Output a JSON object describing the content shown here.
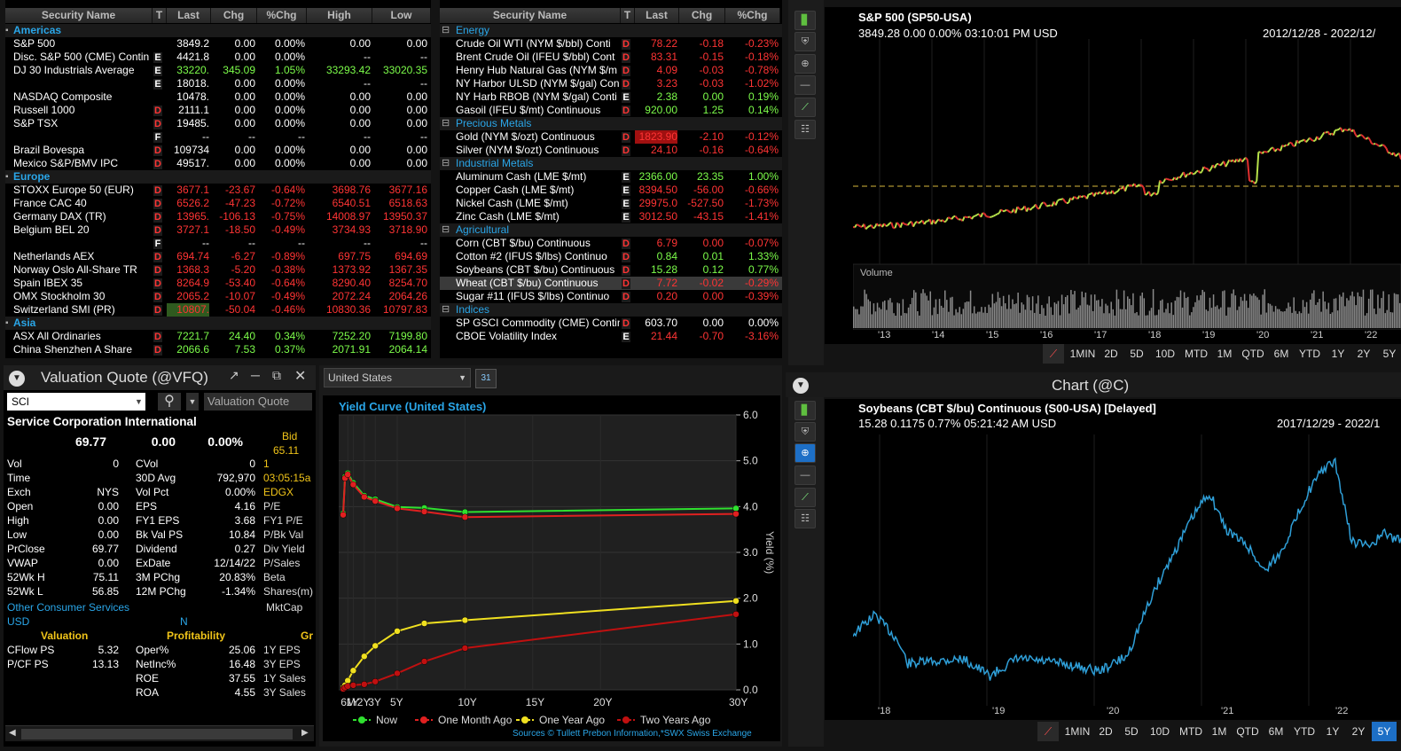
{
  "mw1": {
    "headers": [
      "Security Name",
      "T",
      "Last",
      "Chg",
      "%Chg",
      "High",
      "Low"
    ],
    "rows": [
      {
        "section": "Americas"
      },
      {
        "name": "S&P 500",
        "flag": "",
        "last": "3849.2",
        "chg": "0.00",
        "pct": "0.00%",
        "high": "0.00",
        "low": "0.00",
        "c": "w"
      },
      {
        "name": "Disc. S&P 500 (CME) Contin",
        "flag": "E",
        "last": "4421.8",
        "chg": "0.00",
        "pct": "0.00%",
        "high": "--",
        "low": "--",
        "c": "w"
      },
      {
        "name": "DJ 30 Industrials Average",
        "flag": "E",
        "last": "33220.",
        "chg": "345.09",
        "pct": "1.05%",
        "high": "33293.42",
        "low": "33020.35",
        "c": "g"
      },
      {
        "name": "",
        "flag": "E",
        "last": "18018.",
        "chg": "0.00",
        "pct": "0.00%",
        "high": "--",
        "low": "--",
        "c": "w"
      },
      {
        "name": "NASDAQ Composite",
        "flag": "",
        "last": "10478.",
        "chg": "0.00",
        "pct": "0.00%",
        "high": "0.00",
        "low": "0.00",
        "c": "w"
      },
      {
        "name": "Russell 1000",
        "flag": "D",
        "last": "2111.1",
        "chg": "0.00",
        "pct": "0.00%",
        "high": "0.00",
        "low": "0.00",
        "c": "w"
      },
      {
        "name": "S&P TSX",
        "flag": "D",
        "last": "19485.",
        "chg": "0.00",
        "pct": "0.00%",
        "high": "0.00",
        "low": "0.00",
        "c": "w"
      },
      {
        "name": "",
        "flag": "F",
        "last": "--",
        "chg": "--",
        "pct": "--",
        "high": "--",
        "low": "--",
        "c": "w"
      },
      {
        "name": "Brazil Bovespa",
        "flag": "D",
        "last": "109734",
        "chg": "0.00",
        "pct": "0.00%",
        "high": "0.00",
        "low": "0.00",
        "c": "w"
      },
      {
        "name": "Mexico S&P/BMV IPC",
        "flag": "D",
        "last": "49517.",
        "chg": "0.00",
        "pct": "0.00%",
        "high": "0.00",
        "low": "0.00",
        "c": "w"
      },
      {
        "section": "Europe"
      },
      {
        "name": "STOXX Europe 50 (EUR)",
        "flag": "D",
        "last": "3677.1",
        "chg": "-23.67",
        "pct": "-0.64%",
        "high": "3698.76",
        "low": "3677.16",
        "c": "r"
      },
      {
        "name": "France CAC 40",
        "flag": "D",
        "last": "6526.2",
        "chg": "-47.23",
        "pct": "-0.72%",
        "high": "6540.51",
        "low": "6518.63",
        "c": "r"
      },
      {
        "name": "Germany DAX (TR)",
        "flag": "D",
        "last": "13965.",
        "chg": "-106.13",
        "pct": "-0.75%",
        "high": "14008.97",
        "low": "13950.37",
        "c": "r"
      },
      {
        "name": "Belgium BEL 20",
        "flag": "D",
        "last": "3727.1",
        "chg": "-18.50",
        "pct": "-0.49%",
        "high": "3734.93",
        "low": "3718.90",
        "c": "r"
      },
      {
        "name": "",
        "flag": "F",
        "last": "--",
        "chg": "--",
        "pct": "--",
        "high": "--",
        "low": "--",
        "c": "w"
      },
      {
        "name": "Netherlands AEX",
        "flag": "D",
        "last": "694.74",
        "chg": "-6.27",
        "pct": "-0.89%",
        "high": "697.75",
        "low": "694.69",
        "c": "r"
      },
      {
        "name": "Norway Oslo All-Share TR",
        "flag": "D",
        "last": "1368.3",
        "chg": "-5.20",
        "pct": "-0.38%",
        "high": "1373.92",
        "low": "1367.35",
        "c": "r"
      },
      {
        "name": "Spain IBEX 35",
        "flag": "D",
        "last": "8264.9",
        "chg": "-53.40",
        "pct": "-0.64%",
        "high": "8290.40",
        "low": "8254.70",
        "c": "r"
      },
      {
        "name": "OMX Stockholm 30",
        "flag": "D",
        "last": "2065.2",
        "chg": "-10.07",
        "pct": "-0.49%",
        "high": "2072.24",
        "low": "2064.26",
        "c": "r"
      },
      {
        "name": "Switzerland SMI (PR)",
        "flag": "D",
        "last": "10807.",
        "chg": "-50.04",
        "pct": "-0.46%",
        "high": "10830.36",
        "low": "10797.83",
        "c": "r",
        "hl": "#2f5a1f"
      },
      {
        "section": "Asia"
      },
      {
        "name": "ASX All Ordinaries",
        "flag": "D",
        "last": "7221.7",
        "chg": "24.40",
        "pct": "0.34%",
        "high": "7252.20",
        "low": "7199.80",
        "c": "g"
      },
      {
        "name": "China Shenzhen A Share",
        "flag": "D",
        "last": "2066.6",
        "chg": "7.53",
        "pct": "0.37%",
        "high": "2071.91",
        "low": "2064.14",
        "c": "g"
      }
    ]
  },
  "mw2": {
    "headers": [
      "Security Name",
      "T",
      "Last",
      "Chg",
      "%Chg"
    ],
    "rows": [
      {
        "section": "Energy"
      },
      {
        "name": "Crude Oil WTI (NYM $/bbl) Conti",
        "flag": "D",
        "last": "78.22",
        "chg": "-0.18",
        "pct": "-0.23%",
        "c": "r"
      },
      {
        "name": "Brent Crude Oil (IFEU $/bbl) Cont",
        "flag": "D",
        "last": "83.31",
        "chg": "-0.15",
        "pct": "-0.18%",
        "c": "r"
      },
      {
        "name": "Henry Hub Natural Gas (NYM $/m",
        "flag": "D",
        "last": "4.09",
        "chg": "-0.03",
        "pct": "-0.78%",
        "c": "r"
      },
      {
        "name": "NY Harbor ULSD (NYM $/gal) Con",
        "flag": "D",
        "last": "3.23",
        "chg": "-0.03",
        "pct": "-1.02%",
        "c": "r"
      },
      {
        "name": "NY Harb RBOB (NYM $/gal) Conti",
        "flag": "E",
        "last": "2.38",
        "chg": "0.00",
        "pct": "0.19%",
        "c": "g"
      },
      {
        "name": "Gasoil (IFEU $/mt) Continuous",
        "flag": "D",
        "last": "920.00",
        "chg": "1.25",
        "pct": "0.14%",
        "c": "g"
      },
      {
        "section": "Precious Metals"
      },
      {
        "name": "Gold (NYM $/ozt) Continuous",
        "flag": "D",
        "last": "1823.90",
        "chg": "-2.10",
        "pct": "-0.12%",
        "c": "r",
        "hl": "#a01010"
      },
      {
        "name": "Silver (NYM $/ozt) Continuous",
        "flag": "D",
        "last": "24.10",
        "chg": "-0.16",
        "pct": "-0.64%",
        "c": "r"
      },
      {
        "section": "Industrial Metals"
      },
      {
        "name": "Aluminum Cash (LME $/mt)",
        "flag": "E",
        "last": "2366.00",
        "chg": "23.35",
        "pct": "1.00%",
        "c": "g"
      },
      {
        "name": "Copper Cash (LME $/mt)",
        "flag": "E",
        "last": "8394.50",
        "chg": "-56.00",
        "pct": "-0.66%",
        "c": "r"
      },
      {
        "name": "Nickel Cash (LME $/mt)",
        "flag": "E",
        "last": "29975.0",
        "chg": "-527.50",
        "pct": "-1.73%",
        "c": "r"
      },
      {
        "name": "Zinc Cash (LME $/mt)",
        "flag": "E",
        "last": "3012.50",
        "chg": "-43.15",
        "pct": "-1.41%",
        "c": "r"
      },
      {
        "section": "Agricultural"
      },
      {
        "name": "Corn (CBT $/bu) Continuous",
        "flag": "D",
        "last": "6.79",
        "chg": "0.00",
        "pct": "-0.07%",
        "c": "r"
      },
      {
        "name": "Cotton #2 (IFUS $/lbs) Continuo",
        "flag": "D",
        "last": "0.84",
        "chg": "0.01",
        "pct": "1.33%",
        "c": "g"
      },
      {
        "name": "Soybeans (CBT $/bu) Continuous",
        "flag": "D",
        "last": "15.28",
        "chg": "0.12",
        "pct": "0.77%",
        "c": "g"
      },
      {
        "name": "Wheat (CBT $/bu) Continuous",
        "flag": "D",
        "last": "7.72",
        "chg": "-0.02",
        "pct": "-0.29%",
        "c": "r",
        "sel": true
      },
      {
        "name": "Sugar #11 (IFUS $/lbs) Continuo",
        "flag": "D",
        "last": "0.20",
        "chg": "0.00",
        "pct": "-0.39%",
        "c": "r"
      },
      {
        "section": "Indices"
      },
      {
        "name": "SP GSCI Commodity (CME) Contin",
        "flag": "D",
        "last": "603.70",
        "chg": "0.00",
        "pct": "0.00%",
        "c": "w"
      },
      {
        "name": "CBOE Volatility Index",
        "flag": "E",
        "last": "21.44",
        "chg": "-0.70",
        "pct": "-3.16%",
        "c": "r"
      }
    ]
  },
  "chart1": {
    "header_title": "Chart (@C)",
    "title": "S&P 500 (SP50-USA)",
    "quote": "3849.28  0.00  0.00%  03:10:01 PM  USD",
    "range": "2012/12/28 - 2022/12/",
    "volume_label": "Volume",
    "xticks": [
      "'13",
      "'14",
      "'15",
      "'16",
      "'17",
      "'18",
      "'19",
      "'20",
      "'21",
      "'22"
    ],
    "ranges": [
      "1MIN",
      "2D",
      "5D",
      "10D",
      "MTD",
      "1M",
      "QTD",
      "6M",
      "YTD",
      "1Y",
      "2Y",
      "5Y"
    ]
  },
  "chart2": {
    "header_title": "Chart (@C)",
    "title": "Soybeans (CBT $/bu) Continuous (S00-USA) [Delayed]",
    "quote": "15.28  0.1175  0.77%  05:21:42 AM  USD",
    "range": "2017/12/29 - 2022/1",
    "xticks": [
      "'18",
      "'19",
      "'20",
      "'21",
      "'22"
    ],
    "ranges": [
      "1MIN",
      "2D",
      "5D",
      "10D",
      "MTD",
      "1M",
      "QTD",
      "6M",
      "YTD",
      "1Y",
      "2Y",
      "5Y"
    ],
    "active_range": "5Y"
  },
  "vq": {
    "header_title": "Valuation Quote (@VFQ)",
    "symbol": "SCI",
    "view_label": "Valuation Quote",
    "company": "Service Corporation International",
    "last": "69.77",
    "chg": "0.00",
    "pct": "0.00%",
    "bid_label": "Bid",
    "bid": "65.11",
    "rows": [
      [
        "Vol",
        "0",
        "CVol",
        "0",
        "1"
      ],
      [
        "Time",
        "",
        "30D Avg",
        "792,970",
        "03:05:15a"
      ],
      [
        "Exch",
        "NYS",
        "Vol Pct",
        "0.00%",
        "EDGX"
      ],
      [
        "Open",
        "0.00",
        "EPS",
        "4.16",
        "P/E"
      ],
      [
        "High",
        "0.00",
        "FY1 EPS",
        "3.68",
        "FY1 P/E"
      ],
      [
        "Low",
        "0.00",
        "Bk Val PS",
        "10.84",
        "P/Bk Val"
      ],
      [
        "PrClose",
        "69.77",
        "Dividend",
        "0.27",
        "Div Yield"
      ],
      [
        "VWAP",
        "0.00",
        "ExDate",
        "12/14/22",
        "P/Sales"
      ],
      [
        "52Wk H",
        "75.11",
        "3M PChg",
        "20.83%",
        "Beta"
      ],
      [
        "52Wk L",
        "56.85",
        "12M PChg",
        "-1.34%",
        "Shares(m)"
      ]
    ],
    "industry": "Other Consumer Services",
    "currency": "USD",
    "n_label": "N",
    "mktcap": "MktCap",
    "sec_valuation": "Valuation",
    "sec_profit": "Profitability",
    "sec_gr": "Gr",
    "rows2": [
      [
        "CFlow PS",
        "5.32",
        "Oper%",
        "25.06",
        "1Y EPS"
      ],
      [
        "P/CF PS",
        "13.13",
        "NetInc%",
        "16.48",
        "3Y EPS"
      ],
      [
        "",
        "",
        "ROE",
        "37.55",
        "1Y Sales"
      ],
      [
        "",
        "",
        "ROA",
        "4.55",
        "3Y Sales"
      ]
    ]
  },
  "yc": {
    "country": "United States",
    "title": "Yield Curve (United States)",
    "ylabel": "Yield (%)",
    "sources": "Sources  © Tullett Prebon Information,*SWX Swiss Exchange",
    "calendar_icon": "31"
  },
  "chart_data": {
    "type": "line",
    "title": "Yield Curve (United States)",
    "xlabel": "",
    "ylabel": "Yield (%)",
    "ylim": [
      0,
      6
    ],
    "x": [
      0.083,
      0.25,
      0.5,
      1,
      2,
      3,
      5,
      7,
      10,
      30
    ],
    "xtick_labels": [
      "6M",
      "1Y",
      "2Y",
      "3Y",
      "5Y",
      "10Y",
      "15Y",
      "20Y",
      "30Y"
    ],
    "xtick_pos": [
      0.5,
      1,
      2,
      3,
      5,
      10,
      15,
      20,
      30
    ],
    "yticks": [
      "0.0",
      "1.0",
      "2.0",
      "3.0",
      "4.0",
      "5.0",
      "6.0"
    ],
    "series": [
      {
        "name": "Now",
        "color": "#2fe02f",
        "values": [
          3.85,
          4.65,
          4.73,
          4.52,
          4.24,
          4.16,
          3.99,
          3.97,
          3.88,
          3.96
        ]
      },
      {
        "name": "One Month Ago",
        "color": "#e02020",
        "values": [
          3.82,
          4.62,
          4.7,
          4.48,
          4.21,
          4.12,
          3.96,
          3.89,
          3.77,
          3.84
        ]
      },
      {
        "name": "One Year Ago",
        "color": "#f0e020",
        "values": [
          0.05,
          0.1,
          0.2,
          0.42,
          0.73,
          0.96,
          1.28,
          1.45,
          1.52,
          1.94
        ]
      },
      {
        "name": "Two Years Ago",
        "color": "#c01010",
        "values": [
          0.02,
          0.05,
          0.08,
          0.1,
          0.12,
          0.18,
          0.36,
          0.62,
          0.91,
          1.65
        ]
      }
    ]
  }
}
